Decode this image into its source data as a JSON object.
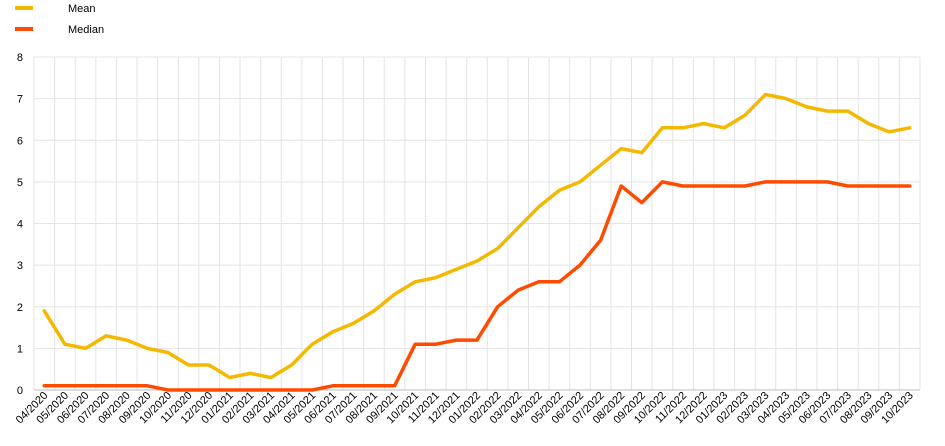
{
  "chart_data": {
    "type": "line",
    "categories": [
      "04/2020",
      "05/2020",
      "06/2020",
      "07/2020",
      "08/2020",
      "09/2020",
      "10/2020",
      "11/2020",
      "12/2020",
      "01/2021",
      "02/2021",
      "03/2021",
      "04/2021",
      "05/2021",
      "06/2021",
      "07/2021",
      "08/2021",
      "09/2021",
      "10/2021",
      "11/2021",
      "12/2021",
      "01/2022",
      "02/2022",
      "03/2022",
      "04/2022",
      "05/2022",
      "06/2022",
      "07/2022",
      "08/2022",
      "09/2022",
      "10/2022",
      "11/2022",
      "12/2022",
      "01/2023",
      "02/2023",
      "03/2023",
      "04/2023",
      "05/2023",
      "06/2023",
      "07/2023",
      "08/2023",
      "09/2023",
      "10/2023"
    ],
    "series": [
      {
        "name": "Mean",
        "color": "#F5B800",
        "values": [
          1.9,
          1.1,
          1.0,
          1.3,
          1.2,
          1.0,
          0.9,
          0.6,
          0.6,
          0.3,
          0.4,
          0.3,
          0.6,
          1.1,
          1.4,
          1.6,
          1.9,
          2.3,
          2.6,
          2.7,
          2.9,
          3.1,
          3.4,
          3.9,
          4.4,
          4.8,
          5.0,
          5.4,
          5.8,
          5.7,
          6.3,
          6.3,
          6.4,
          6.3,
          6.6,
          7.1,
          7.0,
          6.8,
          6.7,
          6.7,
          6.4,
          6.2,
          6.3
        ]
      },
      {
        "name": "Median",
        "color": "#FF4B00",
        "values": [
          0.1,
          0.1,
          0.1,
          0.1,
          0.1,
          0.1,
          0.0,
          0.0,
          0.0,
          0.0,
          0.0,
          0.0,
          0.0,
          0.0,
          0.1,
          0.1,
          0.1,
          0.1,
          1.1,
          1.1,
          1.2,
          1.2,
          2.0,
          2.4,
          2.6,
          2.6,
          3.0,
          3.6,
          4.9,
          4.5,
          5.0,
          4.9,
          4.9,
          4.9,
          4.9,
          5.0,
          5.0,
          5.0,
          5.0,
          4.9,
          4.9,
          4.9,
          4.9
        ]
      }
    ],
    "yticks": [
      "0",
      "1",
      "2",
      "3",
      "4",
      "5",
      "6",
      "7",
      "8"
    ],
    "ylim": [
      0,
      8
    ],
    "grid": true,
    "legend_position": "top-left"
  }
}
